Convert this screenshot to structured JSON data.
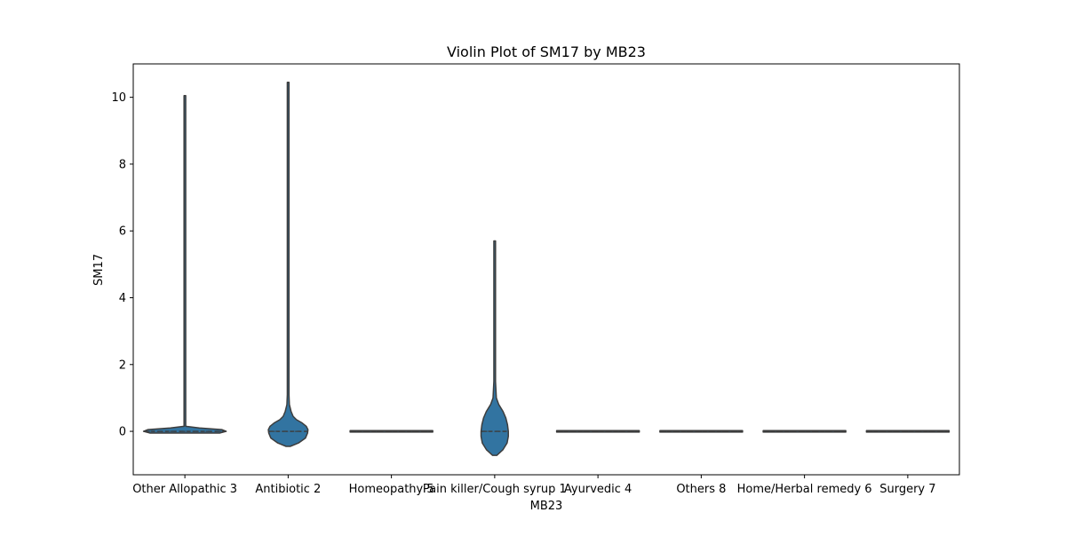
{
  "chart_data": {
    "type": "violin",
    "title": "Violin Plot of SM17 by MB23",
    "xlabel": "MB23",
    "ylabel": "SM17",
    "ylim": [
      -1.3,
      11.0
    ],
    "yticks": [
      0,
      2,
      4,
      6,
      8,
      10
    ],
    "grid": false,
    "color": "#3274a1",
    "edge_color": "#3d3d3d",
    "categories": [
      {
        "name": "Other Allopathic 3",
        "profile": [
          [
            -0.05,
            0.85
          ],
          [
            0.0,
            1.0
          ],
          [
            0.05,
            0.9
          ],
          [
            0.1,
            0.35
          ],
          [
            0.15,
            0.02
          ],
          [
            0.5,
            0.02
          ],
          [
            2,
            0.02
          ],
          [
            6,
            0.02
          ],
          [
            10.05,
            0.02
          ]
        ],
        "quartiles": [
          0,
          0,
          0
        ]
      },
      {
        "name": "Antibiotic 2",
        "profile": [
          [
            -0.45,
            0.05
          ],
          [
            -0.35,
            0.25
          ],
          [
            -0.2,
            0.42
          ],
          [
            -0.05,
            0.47
          ],
          [
            0.05,
            0.48
          ],
          [
            0.15,
            0.44
          ],
          [
            0.25,
            0.34
          ],
          [
            0.35,
            0.2
          ],
          [
            0.45,
            0.12
          ],
          [
            0.6,
            0.07
          ],
          [
            0.8,
            0.03
          ],
          [
            1.1,
            0.02
          ],
          [
            3.5,
            0.02
          ],
          [
            7,
            0.02
          ],
          [
            10.45,
            0.02
          ]
        ],
        "quartiles": [
          0,
          0,
          0
        ]
      },
      {
        "name": "Homeopathy 5",
        "profile": [
          [
            -0.02,
            1.0
          ],
          [
            0.02,
            1.0
          ]
        ],
        "quartiles": [
          0,
          0,
          0
        ]
      },
      {
        "name": "Pain killer/Cough syrup 1",
        "profile": [
          [
            -0.72,
            0.05
          ],
          [
            -0.55,
            0.2
          ],
          [
            -0.35,
            0.3
          ],
          [
            -0.15,
            0.33
          ],
          [
            0.0,
            0.33
          ],
          [
            0.2,
            0.31
          ],
          [
            0.4,
            0.27
          ],
          [
            0.6,
            0.2
          ],
          [
            0.8,
            0.1
          ],
          [
            1.0,
            0.04
          ],
          [
            1.5,
            0.02
          ],
          [
            3.0,
            0.02
          ],
          [
            5.7,
            0.02
          ]
        ],
        "quartiles": [
          0,
          0,
          0
        ]
      },
      {
        "name": "Ayurvedic 4",
        "profile": [
          [
            -0.02,
            1.0
          ],
          [
            0.02,
            1.0
          ]
        ],
        "quartiles": [
          0,
          0,
          0
        ]
      },
      {
        "name": "Others 8",
        "profile": [
          [
            -0.02,
            1.0
          ],
          [
            0.02,
            1.0
          ]
        ],
        "quartiles": [
          0,
          0,
          0
        ]
      },
      {
        "name": "Home/Herbal remedy 6",
        "profile": [
          [
            -0.02,
            1.0
          ],
          [
            0.02,
            1.0
          ]
        ],
        "quartiles": [
          0,
          0,
          0
        ]
      },
      {
        "name": "Surgery 7",
        "profile": [
          [
            -0.02,
            1.0
          ],
          [
            0.02,
            1.0
          ]
        ],
        "quartiles": [
          0,
          0,
          0
        ]
      }
    ]
  }
}
